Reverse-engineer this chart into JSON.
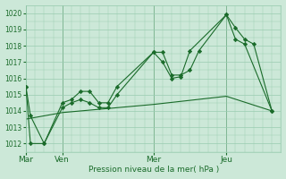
{
  "background_color": "#cce8d8",
  "grid_color": "#99ccb0",
  "line_color": "#1a6b2a",
  "marker_color": "#1a6b2a",
  "xlabel_text": "Pression niveau de la mer( hPa )",
  "ylim": [
    1011.5,
    1020.5
  ],
  "yticks": [
    1012,
    1013,
    1014,
    1015,
    1016,
    1017,
    1018,
    1019,
    1020
  ],
  "xtick_labels": [
    "Mar",
    "Ven",
    "Mer",
    "Jeu"
  ],
  "xtick_positions": [
    0,
    4,
    14,
    22
  ],
  "vline_positions": [
    0,
    4,
    14,
    22
  ],
  "xlim": [
    0,
    28
  ],
  "series1_x": [
    0,
    0.5,
    2,
    4,
    5,
    6,
    7,
    8,
    9,
    10,
    14,
    15,
    16,
    17,
    18,
    19,
    22,
    23,
    24,
    25,
    27
  ],
  "series1_y": [
    1015.5,
    1013.7,
    1012.0,
    1014.5,
    1014.7,
    1015.2,
    1015.2,
    1014.5,
    1014.5,
    1015.5,
    1017.6,
    1017.6,
    1016.2,
    1016.2,
    1016.5,
    1017.7,
    1019.9,
    1019.1,
    1018.4,
    1018.1,
    1014.0
  ],
  "series2_x": [
    0,
    0.5,
    2,
    4,
    5,
    6,
    7,
    8,
    9,
    10,
    14,
    15,
    16,
    17,
    18,
    22,
    23,
    24,
    27
  ],
  "series2_y": [
    1015.5,
    1012.0,
    1012.0,
    1014.2,
    1014.5,
    1014.7,
    1014.5,
    1014.2,
    1014.2,
    1015.0,
    1017.6,
    1017.0,
    1016.0,
    1016.1,
    1017.7,
    1019.9,
    1018.4,
    1018.1,
    1014.0
  ],
  "series3_x": [
    0,
    4,
    14,
    22,
    27
  ],
  "series3_y": [
    1013.5,
    1013.9,
    1014.4,
    1014.9,
    1014.0
  ]
}
